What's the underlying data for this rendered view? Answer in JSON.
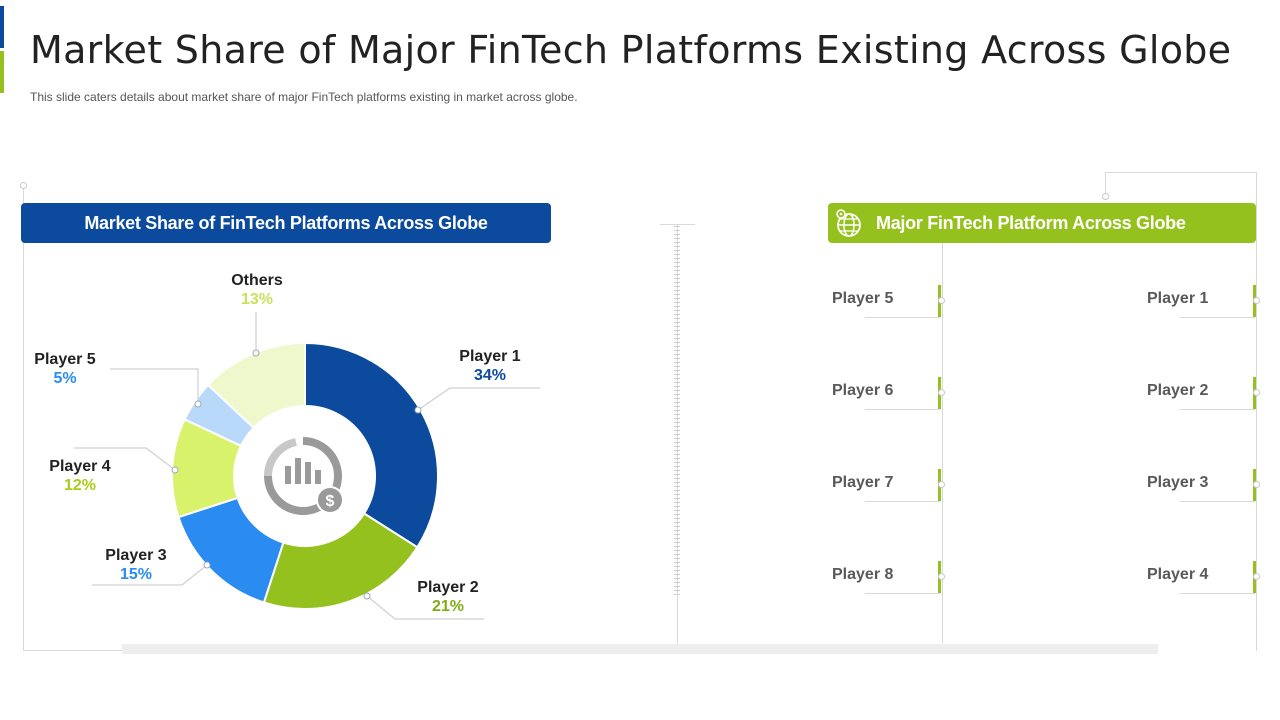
{
  "slide": {
    "title": "Market Share of Major FinTech Platforms Existing Across Globe",
    "subtitle": "This slide caters details about market share of major FinTech  platforms existing in market across globe."
  },
  "left_panel": {
    "header": "Market Share of FinTech Platforms Across Globe"
  },
  "right_panel": {
    "header": "Major FinTech Platform Across Globe",
    "icon": "globe-icon",
    "left_column": [
      "Player 5",
      "Player 6",
      "Player 7",
      "Player 8"
    ],
    "right_column": [
      "Player 1",
      "Player 2",
      "Player 3",
      "Player 4"
    ]
  },
  "colors": {
    "dark_blue": "#0b4a9c",
    "green": "#95c11f",
    "blue": "#2a8cf0",
    "light_green": "#d9f26b",
    "light_blue": "#b9d9fb",
    "pale_green": "#eff8cd"
  },
  "chart_data": {
    "type": "pie",
    "variant": "donut",
    "center_icon": "chart-dollar-icon",
    "slices": [
      {
        "name": "Player 1",
        "value": 34,
        "label": "34%",
        "color": "#0b4a9c",
        "label_color": "#0b4a9c"
      },
      {
        "name": "Player 2",
        "value": 21,
        "label": "21%",
        "color": "#95c11f",
        "label_color": "#7fad12"
      },
      {
        "name": "Player 3",
        "value": 15,
        "label": "15%",
        "color": "#2a8cf0",
        "label_color": "#2a8cf0"
      },
      {
        "name": "Player 4",
        "value": 12,
        "label": "12%",
        "color": "#d9f26b",
        "label_color": "#a8cc1a"
      },
      {
        "name": "Player 5",
        "value": 5,
        "label": "5%",
        "color": "#b9d9fb",
        "label_color": "#2a8cf0"
      },
      {
        "name": "Others",
        "value": 13,
        "label": "13%",
        "color": "#eff8cd",
        "label_color": "#c6e35a"
      }
    ]
  }
}
